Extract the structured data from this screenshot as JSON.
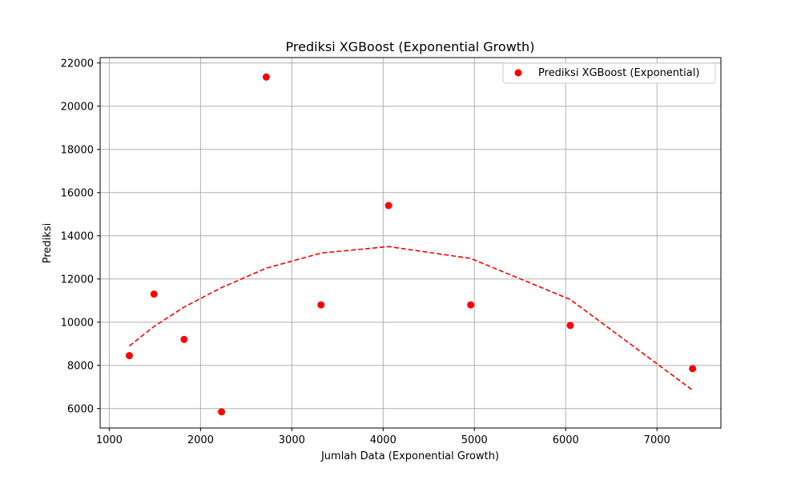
{
  "chart_data": {
    "type": "scatter",
    "title": "Prediksi XGBoost (Exponential Growth)",
    "xlabel": "Jumlah Data (Exponential Growth)",
    "ylabel": "Prediksi",
    "xlim": [
      900,
      7700
    ],
    "ylim": [
      5100,
      22250
    ],
    "xticks": [
      1000,
      2000,
      3000,
      4000,
      5000,
      6000,
      7000
    ],
    "yticks": [
      6000,
      8000,
      10000,
      12000,
      14000,
      16000,
      18000,
      20000,
      22000
    ],
    "grid": true,
    "legend_position": "top-right",
    "series": [
      {
        "name": "Prediksi XGBoost (Exponential)",
        "kind": "scatter",
        "color": "#ff0000",
        "x": [
          1220,
          1490,
          1820,
          2230,
          2720,
          3320,
          4060,
          4960,
          6050,
          7390
        ],
        "y": [
          8450,
          11300,
          9200,
          5850,
          21350,
          10800,
          15400,
          10800,
          9850,
          7850
        ]
      },
      {
        "kind": "trend-line",
        "style": "dashed",
        "color": "#ff0000",
        "x": [
          1220,
          1490,
          1820,
          2230,
          2720,
          3320,
          4060,
          4960,
          6050,
          7390
        ],
        "y": [
          8900,
          9800,
          10700,
          11600,
          12500,
          13200,
          13500,
          12950,
          11050,
          6850
        ]
      }
    ]
  }
}
